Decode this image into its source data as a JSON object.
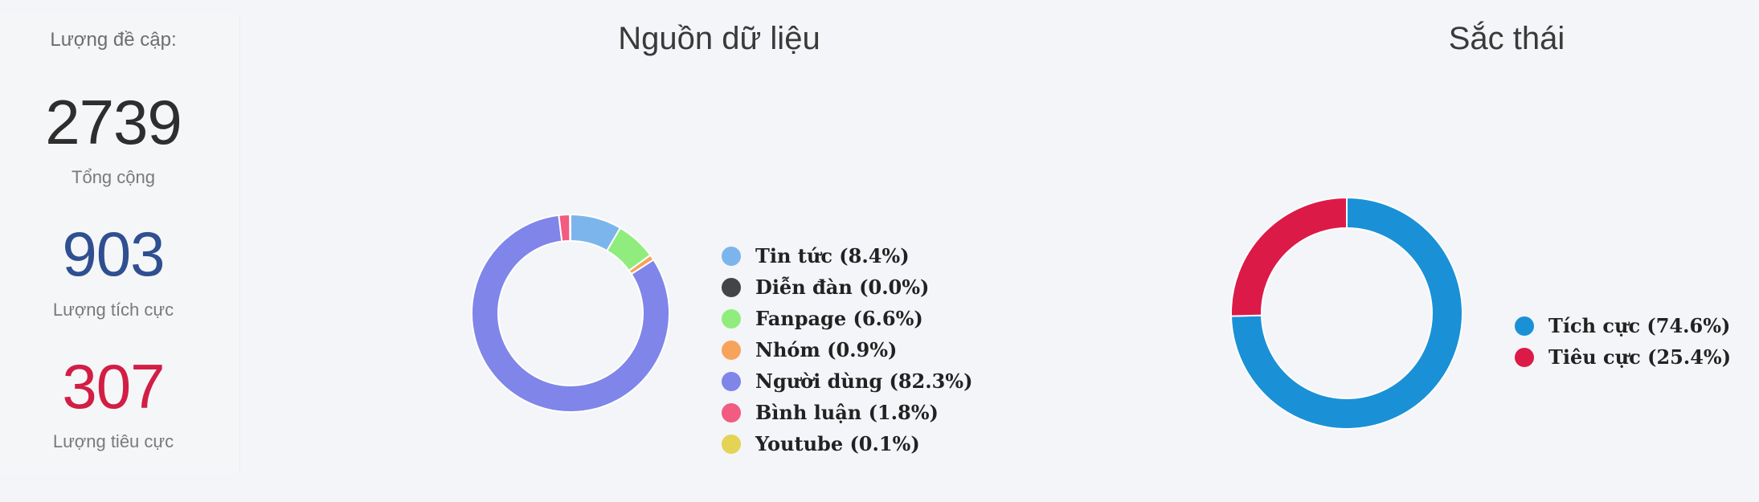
{
  "stats": {
    "heading": "Lượng đề cập:",
    "total": {
      "value": "2739",
      "label": "Tổng cộng"
    },
    "positive": {
      "value": "903",
      "label": "Lượng tích cực",
      "color": "#2f4f91"
    },
    "negative": {
      "value": "307",
      "label": "Lượng tiêu cực",
      "color": "#d21e45"
    }
  },
  "chart_data": [
    {
      "type": "pie",
      "title": "Nguồn dữ liệu",
      "categories": [
        "Tin tức",
        "Diễn đàn",
        "Fanpage",
        "Nhóm",
        "Người dùng",
        "Bình luận",
        "Youtube"
      ],
      "values": [
        8.4,
        0.0,
        6.6,
        0.9,
        82.3,
        1.8,
        0.1
      ],
      "labels": [
        "Tin tức (8.4%)",
        "Diễn đàn (0.0%)",
        "Fanpage (6.6%)",
        "Nhóm (0.9%)",
        "Người dùng (82.3%)",
        "Bình luận (1.8%)",
        "Youtube (0.1%)"
      ],
      "colors": [
        "#7cb5ec",
        "#434348",
        "#90ed7d",
        "#f7a35c",
        "#8085e9",
        "#f15c80",
        "#e4d354"
      ],
      "legend": "right"
    },
    {
      "type": "pie",
      "title": "Sắc thái",
      "categories": [
        "Tích cực",
        "Tiêu cực"
      ],
      "values": [
        74.6,
        25.4
      ],
      "labels": [
        "Tích cực (74.6%)",
        "Tiêu cực (25.4%)"
      ],
      "colors": [
        "#1a91d6",
        "#dc1a48"
      ],
      "legend": "right"
    }
  ]
}
